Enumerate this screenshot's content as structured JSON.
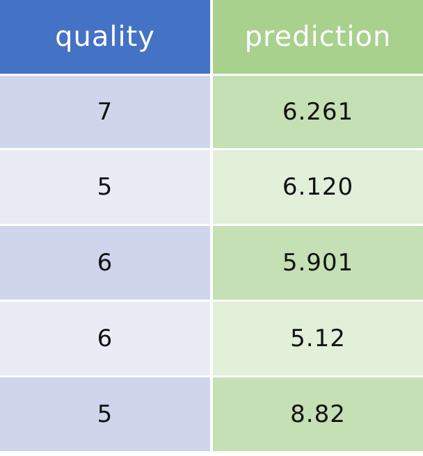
{
  "table": {
    "columns": [
      "quality",
      "prediction"
    ],
    "rows": [
      {
        "quality": "7",
        "prediction": "6.261"
      },
      {
        "quality": "5",
        "prediction": "6.120"
      },
      {
        "quality": "6",
        "prediction": "5.901"
      },
      {
        "quality": "6",
        "prediction": "5.12"
      },
      {
        "quality": "5",
        "prediction": "8.82"
      }
    ]
  },
  "colors": {
    "header_quality": "#4472c4",
    "header_prediction": "#a9d18e",
    "quality_dark": "#cfd5ea",
    "quality_light": "#e9ebf5",
    "prediction_dark": "#c5e0b4",
    "prediction_light": "#e2efd9"
  }
}
